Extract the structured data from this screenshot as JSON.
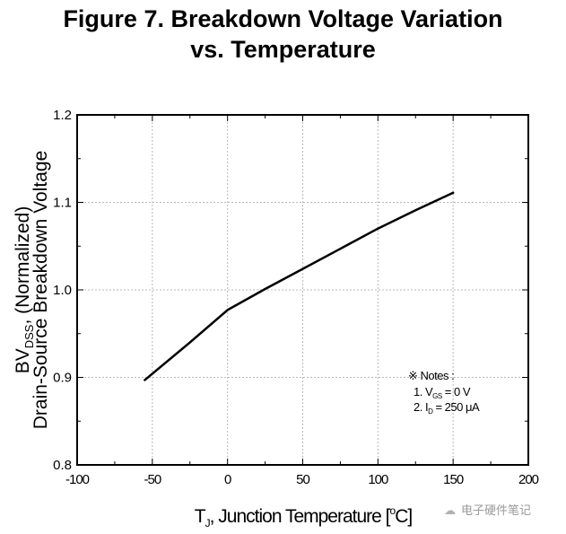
{
  "chart_data": {
    "type": "line",
    "title_lines": [
      "Figure 7. Breakdown Voltage Variation",
      "vs. Temperature"
    ],
    "xlabel": {
      "main": "T",
      "sub": "J",
      "rest": ", Junction Temperature [",
      "sup": "o",
      "unit": "C]"
    },
    "ylabel": {
      "line1_main": "BV",
      "line1_sub": "DSS",
      "line1_rest": ", (Normalized)",
      "line2": "Drain-Source Breakdown Voltage"
    },
    "xlim": [
      -100,
      200
    ],
    "ylim": [
      0.8,
      1.2
    ],
    "x_ticks": [
      -100,
      -50,
      0,
      50,
      100,
      150,
      200
    ],
    "x_tick_labels": [
      "-100",
      "-50",
      "0",
      "50",
      "100",
      "150",
      "200"
    ],
    "y_ticks": [
      0.8,
      0.9,
      1.0,
      1.1,
      1.2
    ],
    "y_tick_labels": [
      "0.8",
      "0.9",
      "1.0",
      "1.1",
      "1.2"
    ],
    "x_minor_step": 25,
    "y_minor_step": 0.05,
    "grid": true,
    "series": [
      {
        "name": "BVDSS normalized",
        "color": "#000000",
        "x": [
          -55,
          -25,
          0,
          25,
          50,
          75,
          100,
          125,
          150
        ],
        "y": [
          0.897,
          0.94,
          0.977,
          1.001,
          1.024,
          1.047,
          1.07,
          1.091,
          1.111
        ]
      }
    ],
    "notes": {
      "header": "※ Notes :",
      "items": [
        {
          "prefix": "1. V",
          "sub": "GS",
          "rest": " = 0 V"
        },
        {
          "prefix": "2. I",
          "sub": "D",
          "rest": " = 250 μA"
        }
      ]
    }
  },
  "watermark": {
    "icon": "wechat-icon",
    "text": "电子硬件笔记"
  }
}
